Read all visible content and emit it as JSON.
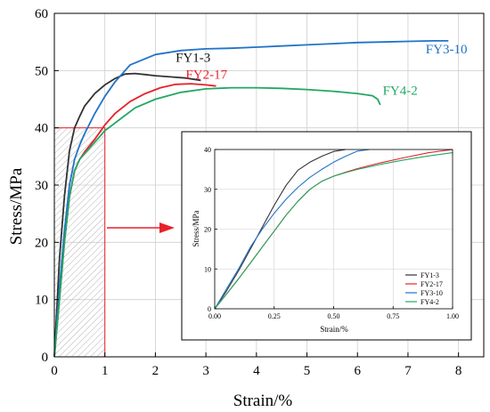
{
  "chart_data": [
    {
      "type": "line",
      "title": "",
      "xlabel": "Strain/%",
      "ylabel": "Stress/MPa",
      "xlim": [
        0,
        8.5
      ],
      "ylim": [
        0,
        60
      ],
      "xticks": [
        0,
        1,
        2,
        3,
        4,
        5,
        6,
        7,
        8
      ],
      "yticks": [
        0,
        10,
        20,
        30,
        40,
        50,
        60
      ],
      "grid": true,
      "legend": "inline labels next to curves",
      "highlight_region": {
        "x": [
          0,
          1
        ],
        "y": [
          0,
          40
        ]
      },
      "series": [
        {
          "name": "FY1-3",
          "color": "#333333",
          "x": [
            0,
            0.1,
            0.2,
            0.3,
            0.4,
            0.5,
            0.6,
            0.8,
            1.0,
            1.2,
            1.4,
            1.6,
            1.8,
            2.0,
            2.3,
            2.6,
            2.9
          ],
          "y": [
            0,
            17,
            28,
            36,
            40,
            42,
            43.8,
            46,
            47.5,
            48.6,
            49.4,
            49.5,
            49.3,
            49.1,
            48.9,
            48.7,
            48.3
          ]
        },
        {
          "name": "FY2-17",
          "color": "#e8212a",
          "x": [
            0,
            0.1,
            0.2,
            0.3,
            0.4,
            0.5,
            0.6,
            0.8,
            1.0,
            1.2,
            1.5,
            1.8,
            2.1,
            2.4,
            2.7,
            3.0,
            3.2
          ],
          "y": [
            0,
            10,
            20,
            28,
            32.5,
            34.5,
            35.8,
            38,
            40.5,
            42.5,
            44.6,
            46,
            47,
            47.6,
            47.7,
            47.5,
            47.3
          ]
        },
        {
          "name": "FY3-10",
          "color": "#2173c8",
          "x": [
            0,
            0.1,
            0.2,
            0.3,
            0.4,
            0.5,
            0.6,
            0.8,
            1.0,
            1.2,
            1.5,
            2.0,
            2.5,
            3.0,
            3.5,
            4.0,
            4.5,
            5.0,
            5.5,
            6.0,
            6.5,
            7.0,
            7.5,
            7.8
          ],
          "y": [
            0,
            12,
            22,
            30,
            34.5,
            37,
            39,
            42.5,
            45.5,
            48,
            51,
            52.8,
            53.5,
            53.8,
            53.9,
            54.1,
            54.3,
            54.5,
            54.7,
            54.9,
            55,
            55.1,
            55.2,
            55.2
          ]
        },
        {
          "name": "FY4-2",
          "color": "#22a764",
          "x": [
            0,
            0.1,
            0.2,
            0.3,
            0.4,
            0.5,
            0.6,
            0.8,
            1.0,
            1.3,
            1.6,
            2.0,
            2.5,
            3.0,
            3.5,
            4.0,
            4.5,
            5.0,
            5.5,
            6.0,
            6.3,
            6.4,
            6.45
          ],
          "y": [
            0,
            10,
            20,
            28,
            32.5,
            34.5,
            35.5,
            37.5,
            39.5,
            41.5,
            43.5,
            45,
            46.2,
            46.8,
            47,
            47,
            46.9,
            46.7,
            46.4,
            46,
            45.6,
            45,
            44
          ]
        }
      ]
    },
    {
      "type": "line",
      "title": "",
      "xlabel": "Strain/%",
      "ylabel": "Stress/MPa",
      "xlim": [
        0,
        1.0
      ],
      "ylim": [
        0,
        40
      ],
      "xticks": [
        0.0,
        0.25,
        0.5,
        0.75,
        1.0
      ],
      "xticklabels": [
        "0.00",
        "0.25",
        "0.50",
        "0.75",
        "1.00"
      ],
      "yticks": [
        0,
        10,
        20,
        30,
        40
      ],
      "grid": true,
      "legend": "bottom-right",
      "series": [
        {
          "name": "FY1-3",
          "color": "#333333",
          "x": [
            0,
            0.05,
            0.1,
            0.15,
            0.2,
            0.25,
            0.3,
            0.35,
            0.4,
            0.45,
            0.5,
            0.55
          ],
          "y": [
            0,
            4.5,
            9.5,
            15,
            20.5,
            26,
            31,
            34.8,
            36.8,
            38.3,
            39.5,
            40
          ]
        },
        {
          "name": "FY2-17",
          "color": "#e8212a",
          "x": [
            0,
            0.05,
            0.1,
            0.15,
            0.2,
            0.25,
            0.3,
            0.35,
            0.4,
            0.45,
            0.5,
            0.55,
            0.6,
            0.7,
            0.8,
            0.9,
            1.0
          ],
          "y": [
            0,
            3.7,
            7.5,
            11.5,
            15.5,
            19.5,
            23.5,
            27,
            30,
            32,
            33.3,
            34.3,
            35.2,
            36.7,
            38,
            39.2,
            40
          ]
        },
        {
          "name": "FY3-10",
          "color": "#2173c8",
          "x": [
            0,
            0.05,
            0.1,
            0.15,
            0.2,
            0.25,
            0.3,
            0.35,
            0.4,
            0.45,
            0.5,
            0.55,
            0.6,
            0.65
          ],
          "y": [
            0,
            5,
            10,
            15.5,
            20,
            24,
            27.5,
            30.5,
            33,
            35,
            36.8,
            38.3,
            39.6,
            40
          ]
        },
        {
          "name": "FY4-2",
          "color": "#22a764",
          "x": [
            0,
            0.05,
            0.1,
            0.15,
            0.2,
            0.25,
            0.3,
            0.35,
            0.4,
            0.45,
            0.5,
            0.55,
            0.6,
            0.7,
            0.8,
            0.9,
            1.0
          ],
          "y": [
            0,
            3.7,
            7.5,
            11.5,
            15.5,
            19.5,
            23.5,
            27,
            30,
            32,
            33.3,
            34.2,
            35,
            36.3,
            37.4,
            38.4,
            39.2
          ]
        }
      ]
    }
  ],
  "colors": {
    "highlight_edge": "#e8212a",
    "highlight_fill": "#e6e6e6",
    "arrow": "#e8212a",
    "grid": "#cfcfcf"
  }
}
